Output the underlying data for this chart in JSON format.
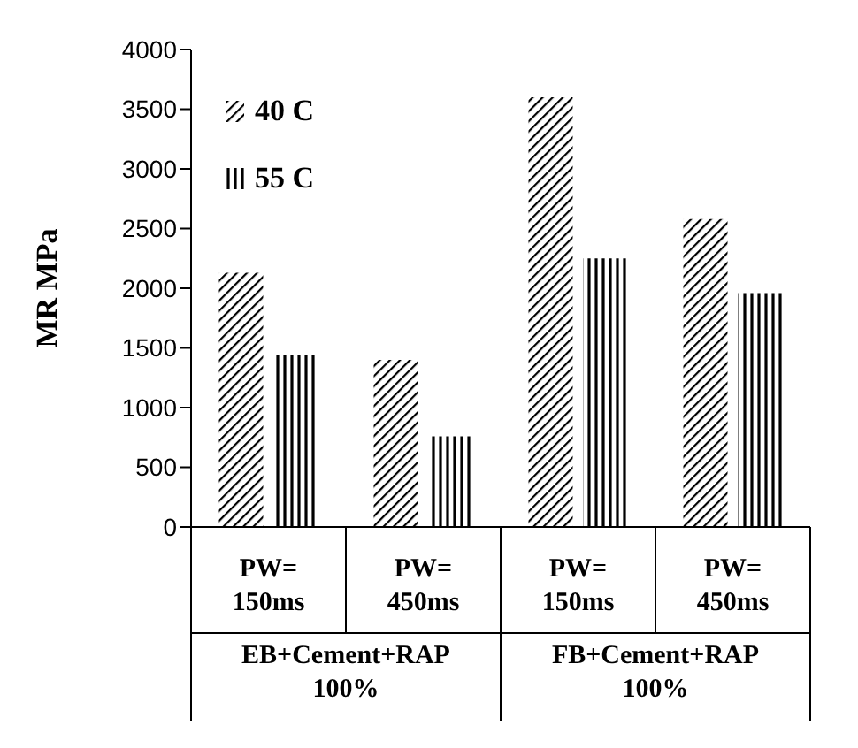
{
  "chart_data": {
    "type": "bar",
    "ylabel": "MR MPa",
    "categories": [
      "PW= 150ms",
      "PW= 450ms",
      "PW= 150ms",
      "PW= 450ms"
    ],
    "series": [
      {
        "name": "40 C",
        "color": "#000000",
        "values": [
          2130,
          1400,
          3600,
          2580
        ]
      },
      {
        "name": "55 C",
        "color": "#000000",
        "values": [
          1440,
          760,
          2250,
          1960
        ]
      }
    ],
    "ylim": [
      0,
      4000
    ],
    "yticks": [
      0,
      500,
      1000,
      1500,
      2000,
      2500,
      3000,
      3500,
      4000
    ],
    "grid": false,
    "legend": "top left",
    "annotations": [
      "EB+Cement+RAP 100%",
      "FB+Cement+RAP 100%"
    ]
  }
}
